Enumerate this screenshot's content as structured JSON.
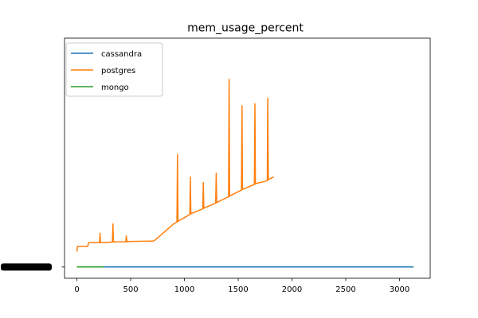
{
  "chart_data": {
    "type": "line",
    "title": "mem_usage_percent",
    "xlabel": "",
    "ylabel": "",
    "xlim": [
      -115,
      3285
    ],
    "ylim": [
      -0.06,
      1.22
    ],
    "grid": false,
    "legend_placement": "top-left",
    "x_ticks": [
      0,
      500,
      1000,
      1500,
      2000,
      2500,
      3000
    ],
    "x_tick_labels": [
      "0",
      "500",
      "1000",
      "1500",
      "2000",
      "2500",
      "3000"
    ],
    "y_tick_labels_overlapping": true,
    "series": [
      {
        "name": "cassandra",
        "color": "#1f77b4",
        "x": [
          0,
          3130
        ],
        "y": [
          0.0,
          0.0
        ]
      },
      {
        "name": "postgres",
        "color": "#ff7f0e",
        "x": [
          0,
          5,
          10,
          100,
          105,
          110,
          210,
          215,
          220,
          225,
          230,
          330,
          335,
          340,
          345,
          350,
          455,
          460,
          465,
          470,
          700,
          700,
          720,
          800,
          900,
          930,
          935,
          940,
          945,
          1050,
          1055,
          1060,
          1065,
          1170,
          1175,
          1180,
          1185,
          1290,
          1295,
          1300,
          1305,
          1410,
          1415,
          1420,
          1425,
          1530,
          1535,
          1540,
          1545,
          1650,
          1655,
          1660,
          1665,
          1770,
          1775,
          1780,
          1785,
          1830
        ],
        "y": [
          0.082,
          0.11,
          0.11,
          0.11,
          0.12,
          0.13,
          0.13,
          0.18,
          0.13,
          0.13,
          0.13,
          0.133,
          0.23,
          0.133,
          0.133,
          0.134,
          0.134,
          0.165,
          0.134,
          0.136,
          0.138,
          0.138,
          0.14,
          0.18,
          0.23,
          0.24,
          0.6,
          0.243,
          0.245,
          0.28,
          0.48,
          0.283,
          0.285,
          0.31,
          0.45,
          0.313,
          0.315,
          0.34,
          0.5,
          0.343,
          0.345,
          0.375,
          1.0,
          0.378,
          0.38,
          0.41,
          0.86,
          0.413,
          0.415,
          0.44,
          0.87,
          0.443,
          0.445,
          0.46,
          0.9,
          0.465,
          0.468,
          0.48
        ]
      },
      {
        "name": "mongo",
        "color": "#2ca02c",
        "x": [
          0,
          250
        ],
        "y": [
          0.0,
          0.0
        ]
      }
    ]
  }
}
